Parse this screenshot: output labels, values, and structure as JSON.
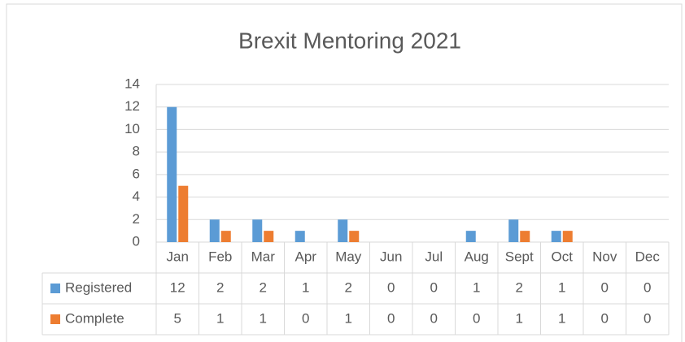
{
  "chart_data": {
    "type": "bar",
    "title": "Brexit Mentoring 2021",
    "categories": [
      "Jan",
      "Feb",
      "Mar",
      "Apr",
      "May",
      "Jun",
      "Jul",
      "Aug",
      "Sept",
      "Oct",
      "Nov",
      "Dec"
    ],
    "series": [
      {
        "name": "Registered",
        "color": "#5b9bd5",
        "values": [
          12,
          2,
          2,
          1,
          2,
          0,
          0,
          1,
          2,
          1,
          0,
          0
        ]
      },
      {
        "name": "Complete",
        "color": "#ed7d31",
        "values": [
          5,
          1,
          1,
          0,
          1,
          0,
          0,
          0,
          1,
          1,
          0,
          0
        ]
      }
    ],
    "ylim": [
      0,
      14
    ],
    "yticks": [
      0,
      2,
      4,
      6,
      8,
      10,
      12,
      14
    ],
    "grid": true
  }
}
